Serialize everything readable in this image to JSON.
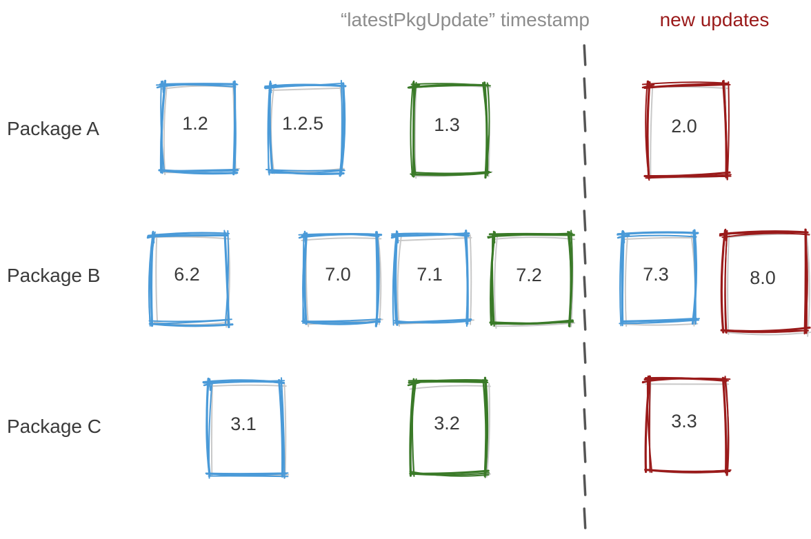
{
  "headers": {
    "timestamp_label": "“latestPkgUpdate” timestamp",
    "new_updates_label": "new updates"
  },
  "colors": {
    "blue": "#4a9ad8",
    "green": "#3a7a28",
    "red": "#9a1a1a",
    "header_gray": "#8c8c8c",
    "divider": "#555555",
    "text": "#3a3a3a"
  },
  "rows": [
    {
      "label": "Package A",
      "versions": [
        {
          "version": "1.2",
          "status": "blue"
        },
        {
          "version": "1.2.5",
          "status": "blue"
        },
        {
          "version": "1.3",
          "status": "green"
        },
        {
          "version": "2.0",
          "status": "red"
        }
      ]
    },
    {
      "label": "Package B",
      "versions": [
        {
          "version": "6.2",
          "status": "blue"
        },
        {
          "version": "7.0",
          "status": "blue"
        },
        {
          "version": "7.1",
          "status": "blue"
        },
        {
          "version": "7.2",
          "status": "green"
        },
        {
          "version": "7.3",
          "status": "blue"
        },
        {
          "version": "8.0",
          "status": "red"
        }
      ]
    },
    {
      "label": "Package C",
      "versions": [
        {
          "version": "3.1",
          "status": "blue"
        },
        {
          "version": "3.2",
          "status": "green"
        },
        {
          "version": "3.3",
          "status": "red"
        }
      ]
    }
  ]
}
